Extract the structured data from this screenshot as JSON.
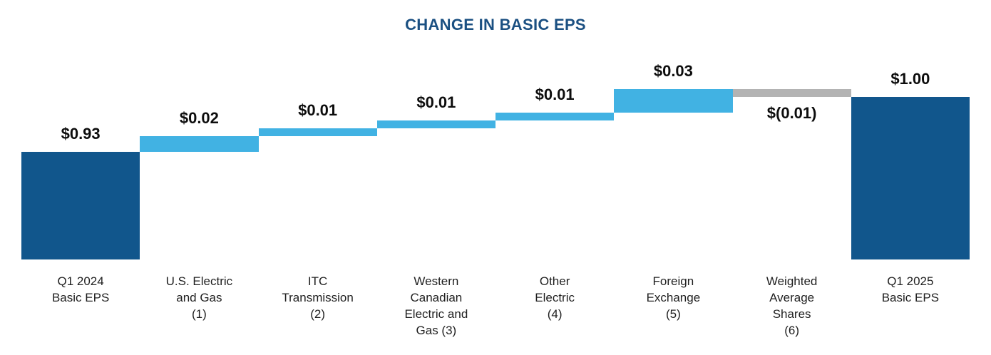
{
  "chart_data": {
    "type": "bar",
    "subtype": "waterfall",
    "title": "CHANGE IN BASIC EPS",
    "title_color": "#1b5082",
    "value_label_color": "#0d0d0d",
    "category_label_color": "#1f1f1f",
    "colors": {
      "total": "#11568c",
      "increase": "#41b2e3",
      "decrease": "#b3b3b3"
    },
    "legend": null,
    "grid": false,
    "axis_lines": false,
    "bars": [
      {
        "category": "Q1 2024\nBasic EPS",
        "value": 0.93,
        "kind": "total",
        "value_label": "$0.93"
      },
      {
        "category": "U.S. Electric\nand Gas\n(1)",
        "value": 0.02,
        "kind": "increase",
        "value_label": "$0.02"
      },
      {
        "category": "ITC\nTransmission\n(2)",
        "value": 0.01,
        "kind": "increase",
        "value_label": "$0.01"
      },
      {
        "category": "Western\nCanadian\nElectric and\nGas (3)",
        "value": 0.01,
        "kind": "increase",
        "value_label": "$0.01"
      },
      {
        "category": "Other\nElectric\n(4)",
        "value": 0.01,
        "kind": "increase",
        "value_label": "$0.01"
      },
      {
        "category": "Foreign\nExchange\n(5)",
        "value": 0.03,
        "kind": "increase",
        "value_label": "$0.03"
      },
      {
        "category": "Weighted\nAverage\nShares\n(6)",
        "value": -0.01,
        "kind": "decrease",
        "value_label": "$(0.01)"
      },
      {
        "category": "Q1 2025\nBasic EPS",
        "value": 1.0,
        "kind": "total",
        "value_label": "$1.00"
      }
    ]
  }
}
